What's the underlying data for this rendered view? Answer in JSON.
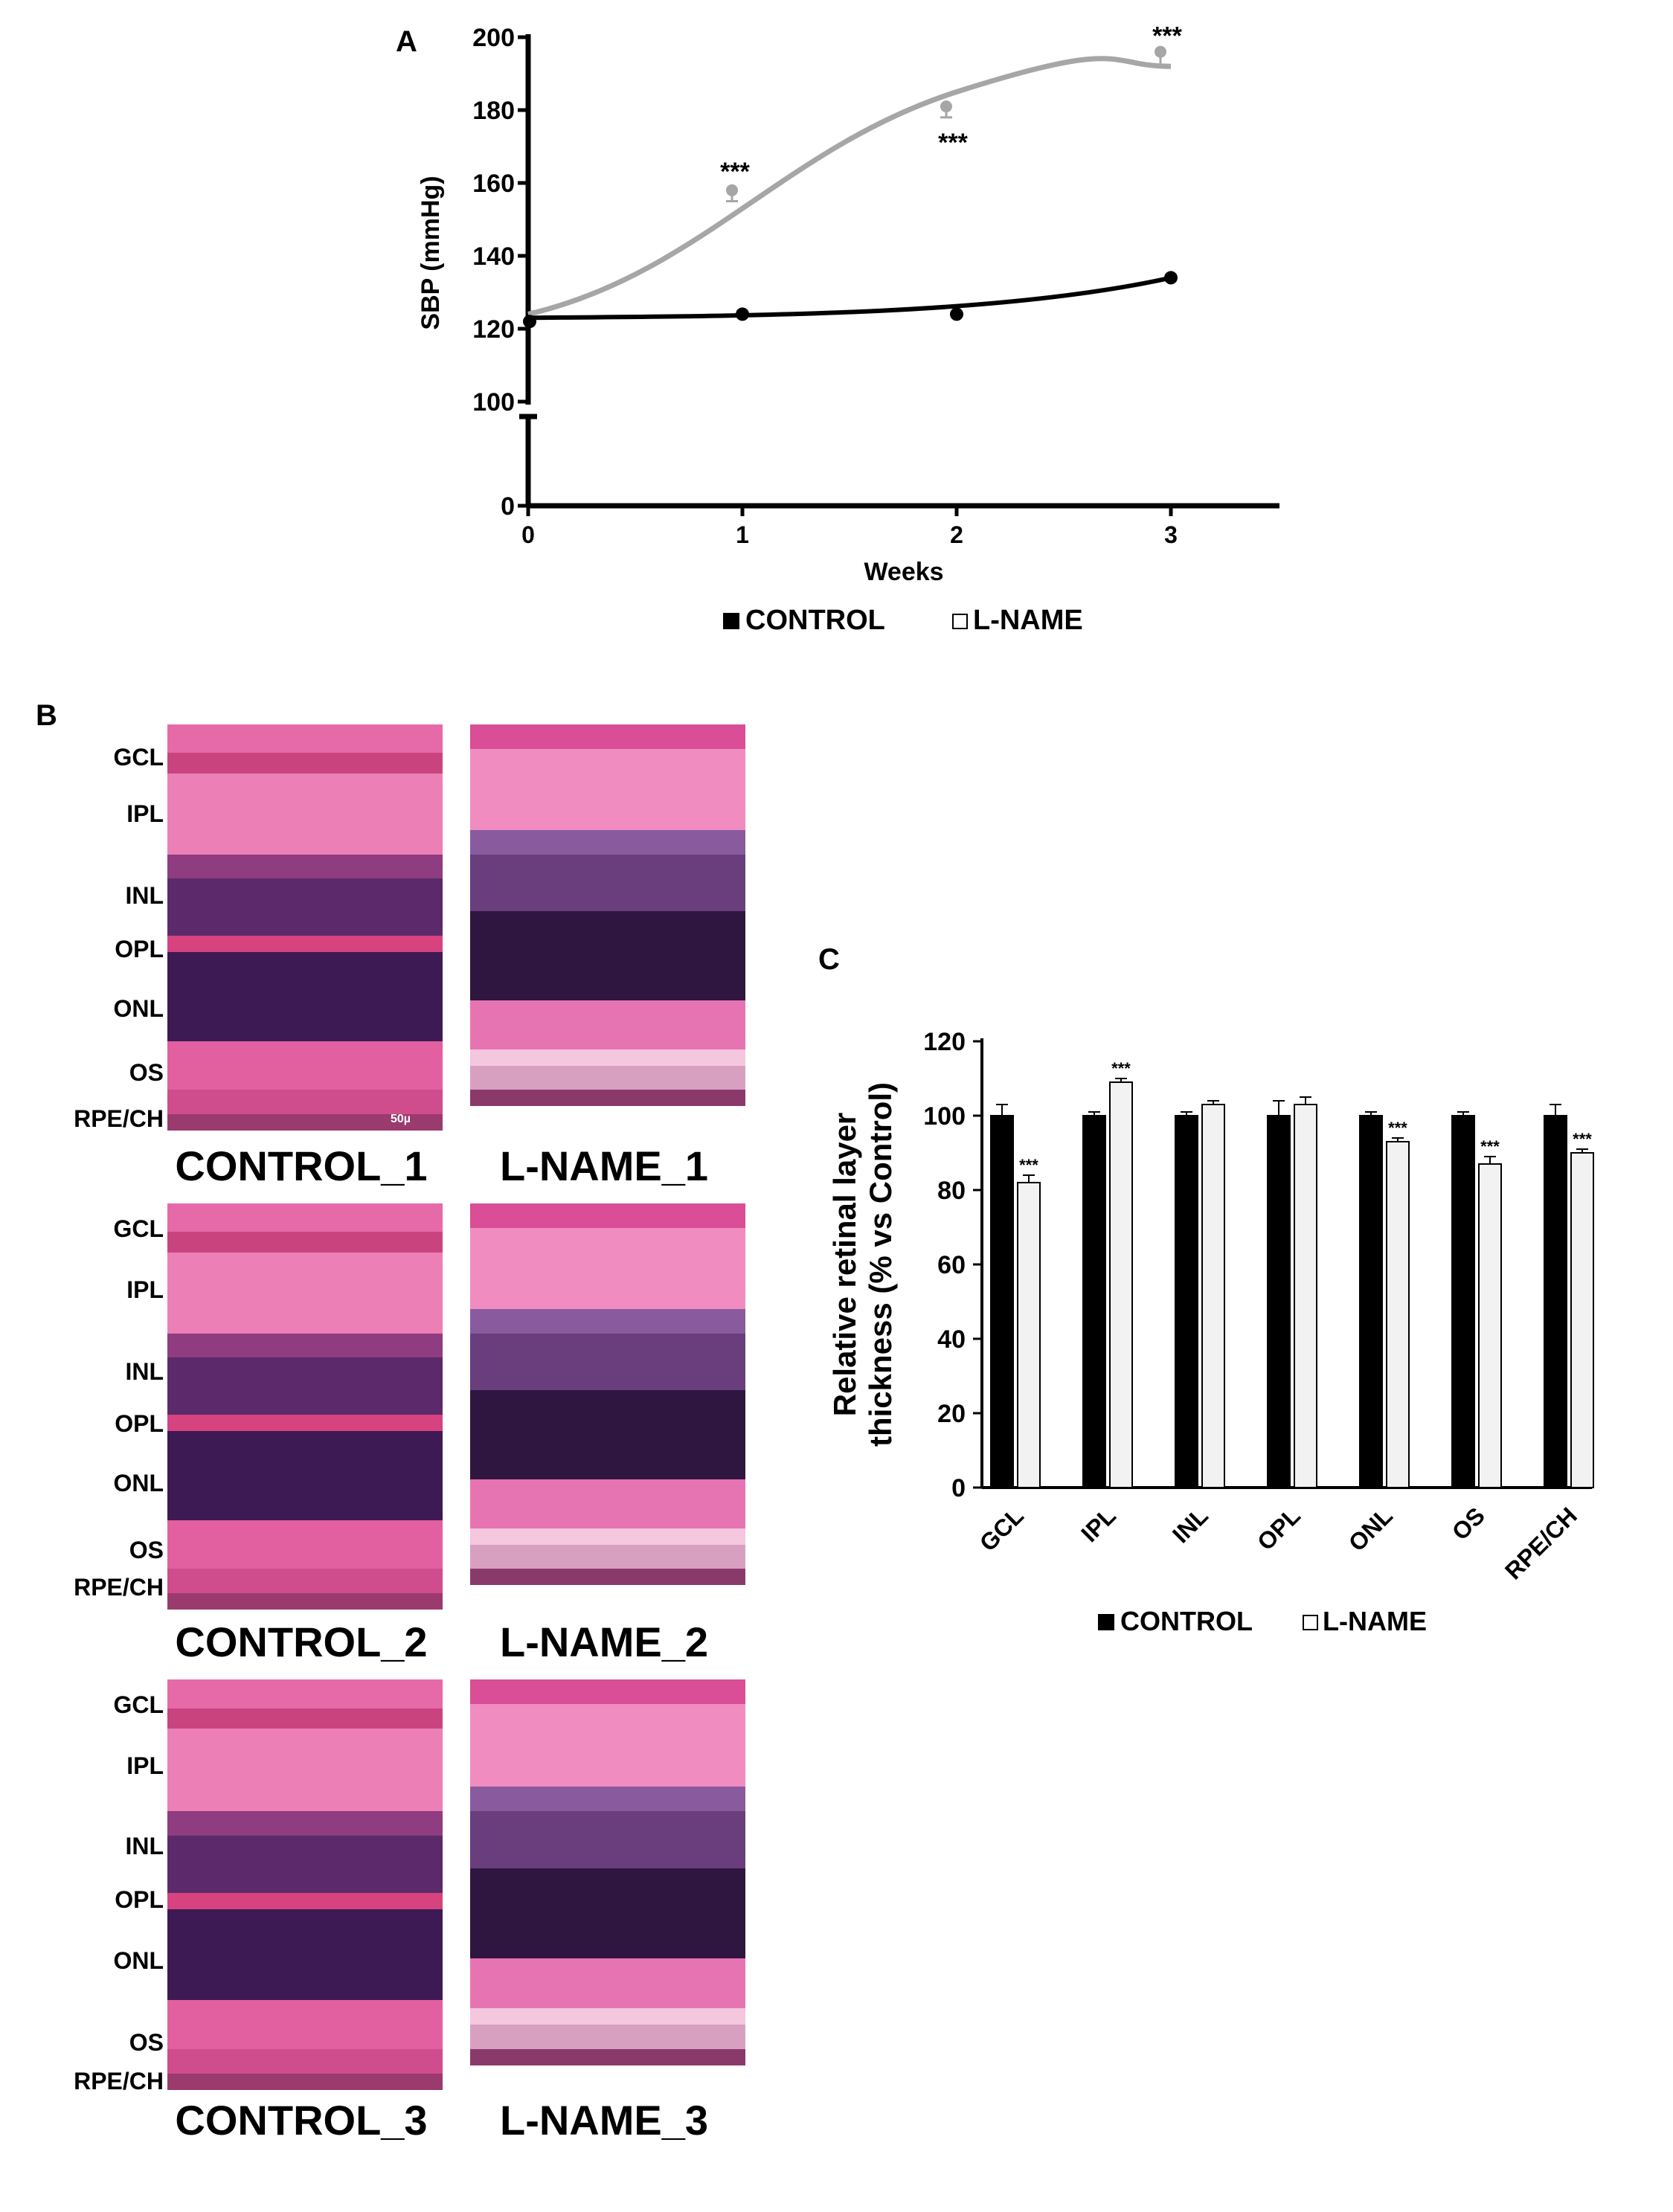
{
  "panels": {
    "a": "A",
    "b": "B",
    "c": "C"
  },
  "legend": {
    "control": "CONTROL",
    "lname": "L-NAME"
  },
  "colors": {
    "control": "#000000",
    "lname_line": "#a6a6a6",
    "lname_bar": "#f2f2f2",
    "he_pink": "#e0609f",
    "he_purple": "#3e1a55"
  },
  "sbp_chart": {
    "type": "line",
    "xlabel": "Weeks",
    "ylabel": "SBP (mmHg)",
    "x": [
      0,
      1,
      2,
      3
    ],
    "x_ticks": [
      "0",
      "1",
      "2",
      "3"
    ],
    "y_ticks": [
      "0",
      "100",
      "120",
      "140",
      "160",
      "180",
      "200"
    ],
    "ylim": [
      100,
      200
    ],
    "axis_break": true,
    "series": [
      {
        "name": "CONTROL",
        "values": [
          122,
          124,
          124,
          134
        ],
        "errors": [
          0,
          0,
          0,
          0
        ]
      },
      {
        "name": "L-NAME",
        "values": [
          122,
          158,
          181,
          196
        ],
        "errors": [
          0,
          2,
          2,
          3
        ]
      }
    ],
    "significance": [
      "",
      "***",
      "***",
      "***"
    ]
  },
  "micrographs": {
    "layers": [
      "GCL",
      "IPL",
      "INL",
      "OPL",
      "ONL",
      "OS",
      "RPE/CH"
    ],
    "scale_bar": "50µ",
    "captions": [
      "CONTROL_1",
      "L-NAME_1",
      "CONTROL_2",
      "L-NAME_2",
      "CONTROL_3",
      "L-NAME_3"
    ]
  },
  "chart_data": {
    "type": "bar",
    "ylabel": "Relative retinal layer thickness (% vs Control)",
    "categories": [
      "GCL",
      "IPL",
      "INL",
      "OPL",
      "ONL",
      "OS",
      "RPE/CH"
    ],
    "ylim": [
      0,
      120
    ],
    "y_ticks": [
      "0",
      "20",
      "40",
      "60",
      "80",
      "100",
      "120"
    ],
    "series": [
      {
        "name": "CONTROL",
        "values": [
          100,
          100,
          100,
          100,
          100,
          100,
          100
        ],
        "errors": [
          3,
          1,
          1,
          4,
          1,
          1,
          3
        ]
      },
      {
        "name": "L-NAME",
        "values": [
          82,
          109,
          103,
          103,
          93,
          87,
          90
        ],
        "errors": [
          2,
          1,
          1,
          2,
          1,
          2,
          1
        ]
      }
    ],
    "significance": [
      "***",
      "***",
      "",
      "",
      "***",
      "***",
      "***"
    ]
  }
}
